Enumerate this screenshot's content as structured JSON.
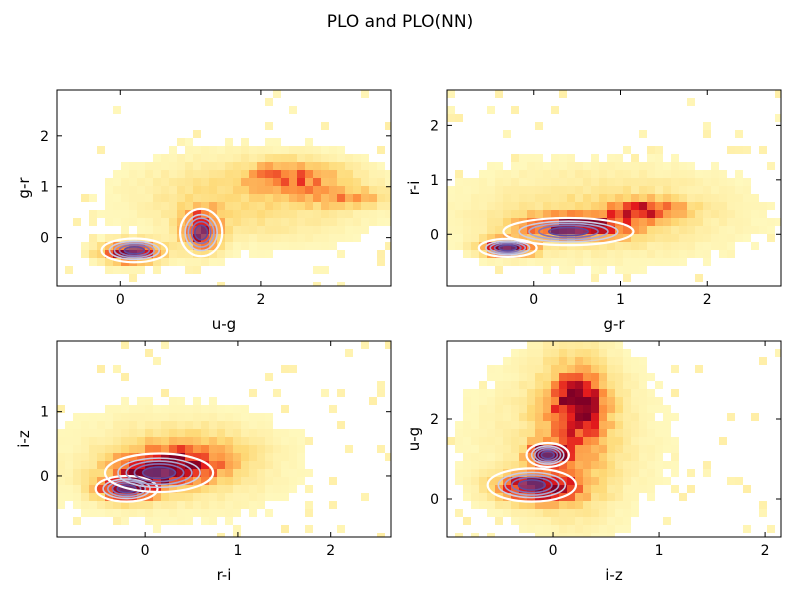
{
  "figure": {
    "title": "PLO and PLO(NN)"
  },
  "chart_data": [
    {
      "type": "heatmap",
      "panel": "top-left",
      "xlabel": "u-g",
      "ylabel": "g-r",
      "xlim": [
        -0.9,
        3.85
      ],
      "ylim": [
        -0.95,
        2.9
      ],
      "xticks": [
        0,
        2
      ],
      "xtick_labels": [
        "0",
        "2"
      ],
      "yticks": [
        0,
        1,
        2
      ],
      "ytick_labels": [
        "0",
        "1",
        "2"
      ],
      "density_components": [
        {
          "x": 0.15,
          "y": -0.3,
          "sx": 0.28,
          "sy": 0.14,
          "w": 1.0
        },
        {
          "x": 1.15,
          "y": 0.15,
          "sx": 0.18,
          "sy": 0.28,
          "w": 0.75
        },
        {
          "x": 2.45,
          "y": 1.2,
          "sx": 0.45,
          "sy": 0.2,
          "w": 0.45
        },
        {
          "x": 3.2,
          "y": 0.8,
          "sx": 0.45,
          "sy": 0.14,
          "w": 0.3
        },
        {
          "x": 1.9,
          "y": 0.8,
          "sx": 1.2,
          "sy": 0.6,
          "w": 0.22
        }
      ],
      "nn_contour_peaks": [
        {
          "x": 0.2,
          "y": -0.25
        },
        {
          "x": 1.15,
          "y": 0.1
        }
      ],
      "nn_contour_color": "#5e4b9e",
      "histogram_colormap": [
        "#ffffcc",
        "#fed976",
        "#fd8d3c",
        "#e31a1c",
        "#800026"
      ]
    },
    {
      "type": "heatmap",
      "panel": "top-right",
      "xlabel": "g-r",
      "ylabel": "r-i",
      "xlim": [
        -1.0,
        2.85
      ],
      "ylim": [
        -0.95,
        2.65
      ],
      "xticks": [
        0,
        1,
        2
      ],
      "xtick_labels": [
        "0",
        "1",
        "2"
      ],
      "yticks": [
        0,
        1,
        2
      ],
      "ytick_labels": [
        "0",
        "1",
        "2"
      ],
      "density_components": [
        {
          "x": -0.3,
          "y": -0.25,
          "sx": 0.2,
          "sy": 0.1,
          "w": 1.0
        },
        {
          "x": 0.5,
          "y": 0.15,
          "sx": 0.45,
          "sy": 0.15,
          "w": 0.8
        },
        {
          "x": 1.3,
          "y": 0.45,
          "sx": 0.3,
          "sy": 0.12,
          "w": 0.6
        },
        {
          "x": 0.8,
          "y": 0.4,
          "sx": 1.1,
          "sy": 0.6,
          "w": 0.2
        }
      ],
      "nn_contour_peaks": [
        {
          "x": -0.3,
          "y": -0.25
        },
        {
          "x": 0.4,
          "y": 0.05
        }
      ],
      "nn_contour_color": "#5e4b9e",
      "histogram_colormap": [
        "#ffffcc",
        "#fed976",
        "#fd8d3c",
        "#e31a1c",
        "#800026"
      ]
    },
    {
      "type": "heatmap",
      "panel": "bottom-left",
      "xlabel": "r-i",
      "ylabel": "i-z",
      "xlim": [
        -0.95,
        2.65
      ],
      "ylim": [
        -0.95,
        2.1
      ],
      "xticks": [
        0,
        1,
        2
      ],
      "xtick_labels": [
        "0",
        "1",
        "2"
      ],
      "yticks": [
        0,
        1
      ],
      "ytick_labels": [
        "0",
        "1"
      ],
      "density_components": [
        {
          "x": -0.2,
          "y": -0.2,
          "sx": 0.2,
          "sy": 0.12,
          "w": 1.0
        },
        {
          "x": 0.2,
          "y": 0.1,
          "sx": 0.35,
          "sy": 0.18,
          "w": 0.8
        },
        {
          "x": 0.5,
          "y": 0.3,
          "sx": 0.4,
          "sy": 0.25,
          "w": 0.3
        },
        {
          "x": 0.3,
          "y": 0.2,
          "sx": 0.9,
          "sy": 0.6,
          "w": 0.15
        }
      ],
      "nn_contour_peaks": [
        {
          "x": -0.2,
          "y": -0.2
        },
        {
          "x": 0.15,
          "y": 0.05
        }
      ],
      "nn_contour_color": "#5e4b9e",
      "histogram_colormap": [
        "#ffffcc",
        "#fed976",
        "#fd8d3c",
        "#e31a1c",
        "#800026"
      ]
    },
    {
      "type": "heatmap",
      "panel": "bottom-right",
      "xlabel": "i-z",
      "ylabel": "u-g",
      "xlim": [
        -1.0,
        2.15
      ],
      "ylim": [
        -0.95,
        3.95
      ],
      "xticks": [
        0,
        1,
        2
      ],
      "xtick_labels": [
        "0",
        "1",
        "2"
      ],
      "yticks": [
        0,
        2
      ],
      "ytick_labels": [
        "0",
        "2"
      ],
      "density_components": [
        {
          "x": -0.15,
          "y": 0.3,
          "sx": 0.25,
          "sy": 0.25,
          "w": 0.95
        },
        {
          "x": -0.05,
          "y": 1.1,
          "sx": 0.12,
          "sy": 0.18,
          "w": 1.0
        },
        {
          "x": 0.25,
          "y": 2.4,
          "sx": 0.15,
          "sy": 0.5,
          "w": 0.7
        },
        {
          "x": 0.2,
          "y": 1.8,
          "sx": 0.25,
          "sy": 1.3,
          "w": 0.35
        },
        {
          "x": 0.1,
          "y": 1.5,
          "sx": 0.7,
          "sy": 1.5,
          "w": 0.12
        }
      ],
      "nn_contour_peaks": [
        {
          "x": -0.05,
          "y": 1.1
        },
        {
          "x": -0.2,
          "y": 0.35
        }
      ],
      "nn_contour_color": "#5e4b9e",
      "histogram_colormap": [
        "#ffffcc",
        "#fed976",
        "#fd8d3c",
        "#e31a1c",
        "#800026"
      ]
    }
  ]
}
